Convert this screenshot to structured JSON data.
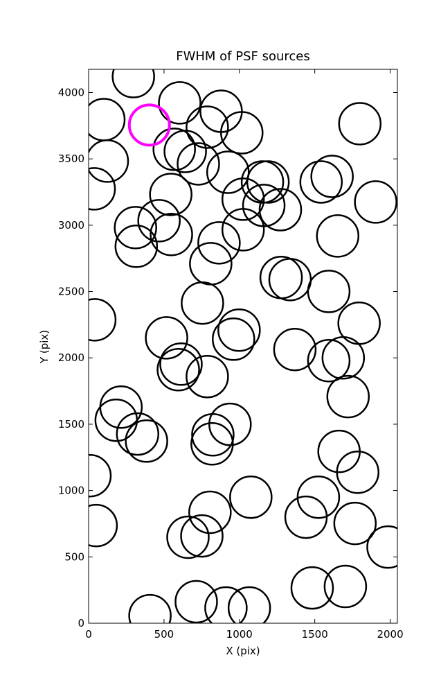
{
  "chart_data": {
    "type": "scatter",
    "title": "FWHM of PSF sources",
    "x_label": "X (pix)",
    "y_label": "Y (pix)",
    "xlim": [
      0,
      2048
    ],
    "ylim": [
      0,
      4175
    ],
    "xticks": [
      0,
      500,
      1000,
      1500,
      2000
    ],
    "yticks": [
      0,
      500,
      1000,
      1500,
      2000,
      2500,
      3000,
      3500,
      4000
    ],
    "series": [
      {
        "color": "#000000",
        "x": [
          297,
          101,
          604,
          879,
          787,
          1016,
          1799,
          124,
          568,
          641,
          728,
          924,
          37,
          545,
          1025,
          1153,
          1190,
          1542,
          1615,
          1904,
          1162,
          1272,
          311,
          467,
          549,
          316,
          1025,
          1652,
          865,
          810,
          1277,
          1336,
          1593,
          755,
          41,
          998,
          1794,
          961,
          517,
          1368,
          613,
          595,
          787,
          1593,
          1689,
          215,
          183,
          325,
          384,
          938,
          824,
          819,
          1721,
          1661,
          1785,
          9,
          1076,
          1524,
          1442,
          805,
          50,
          659,
          751,
          1767,
          1986,
          714,
          1483,
          1703,
          911,
          1066,
          407
        ],
        "y": [
          4120,
          3796,
          3922,
          3859,
          3739,
          3697,
          3765,
          3483,
          3572,
          3556,
          3462,
          3399,
          3274,
          3232,
          3196,
          3326,
          3326,
          3326,
          3368,
          3175,
          3149,
          3117,
          2982,
          3034,
          2930,
          2841,
          2966,
          2919,
          2867,
          2710,
          2606,
          2590,
          2501,
          2413,
          2287,
          2209,
          2261,
          2141,
          2151,
          2063,
          1953,
          1911,
          1859,
          1979,
          2000,
          1629,
          1530,
          1426,
          1373,
          1499,
          1420,
          1352,
          1708,
          1295,
          1138,
          1112,
          950,
          950,
          799,
          836,
          736,
          648,
          658,
          752,
          574,
          162,
          266,
          277,
          115,
          115,
          57
        ]
      },
      {
        "color": "#ff00ff",
        "x": [
          403
        ],
        "y": [
          3755
        ]
      }
    ]
  }
}
